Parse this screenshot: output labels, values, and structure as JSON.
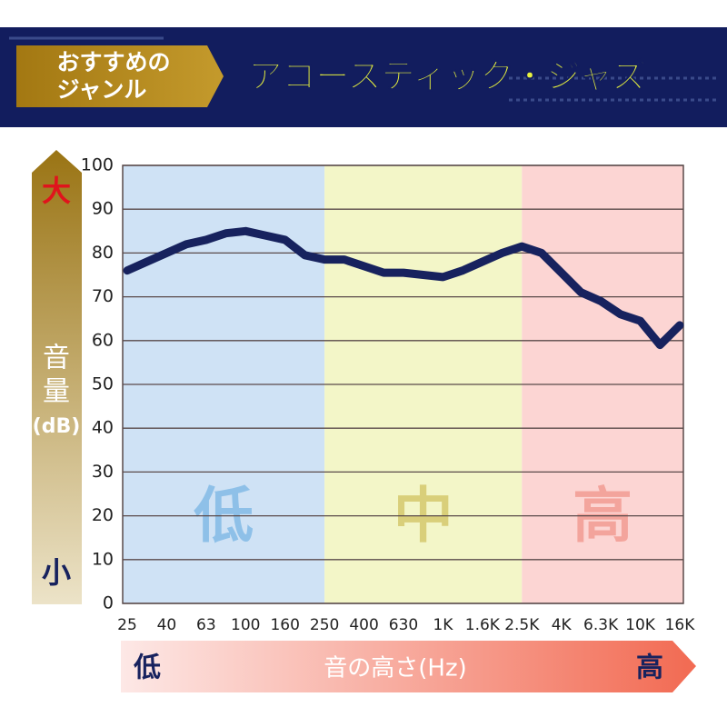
{
  "header": {
    "tag_lines": [
      "おすすめの",
      "ジャンル"
    ],
    "title": "アコースティック・ジャズ"
  },
  "chart_data": {
    "type": "line",
    "categories": [
      "25",
      null,
      "40",
      null,
      "63",
      null,
      "100",
      null,
      "160",
      null,
      "250",
      null,
      "400",
      null,
      "630",
      null,
      "1K",
      null,
      "1.6K",
      null,
      "2.5K",
      null,
      "4K",
      null,
      "6.3K",
      null,
      "10K",
      null,
      "16K"
    ],
    "series": [
      {
        "name": "アコースティック・ジャズ",
        "color": "#17225e",
        "values": [
          76,
          78,
          80,
          82,
          83,
          84.5,
          85,
          84,
          83,
          79.5,
          78.5,
          78.5,
          77,
          75.5,
          75.5,
          75,
          74.5,
          76,
          78,
          80,
          81.5,
          80,
          75.5,
          71,
          69,
          66,
          64.5,
          59,
          63.5
        ]
      }
    ],
    "ylim": [
      0,
      100
    ],
    "yticks": [
      0,
      10,
      20,
      30,
      40,
      50,
      60,
      70,
      80,
      90,
      100
    ],
    "grid": true,
    "zones": [
      {
        "label": "低",
        "color": "#cfe2f5",
        "text_color": "#8ec0e8"
      },
      {
        "label": "中",
        "color": "#f3f6c8",
        "text_color": "#d9cf7a"
      },
      {
        "label": "高",
        "color": "#fcd5d3",
        "text_color": "#f3a49c"
      }
    ],
    "y_axis": {
      "top": "大",
      "label_lines": [
        "音",
        "量",
        "(dB)"
      ],
      "bottom": "小"
    },
    "x_axis": {
      "low": "低",
      "label": "音の高さ(Hz)",
      "high": "高"
    }
  }
}
